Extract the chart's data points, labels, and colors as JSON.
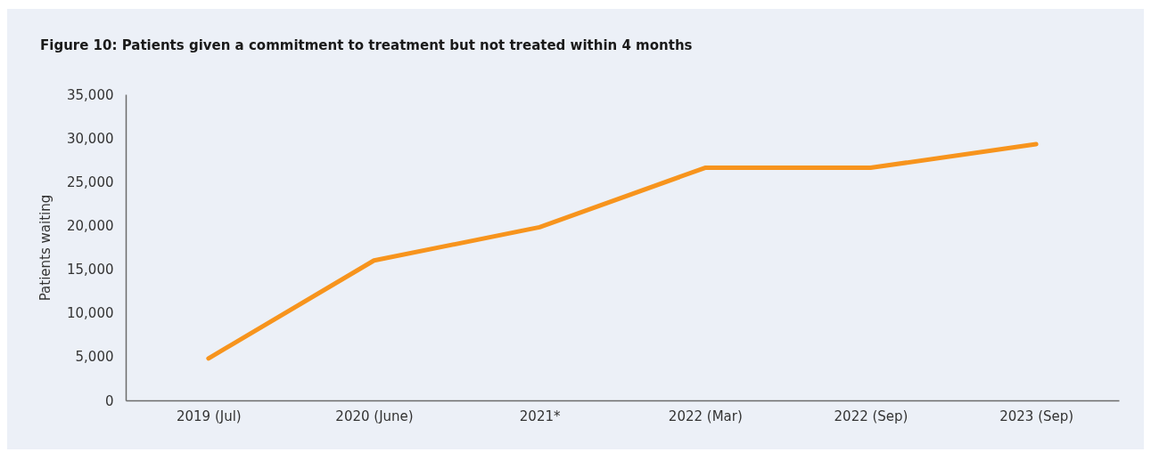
{
  "chart_data": {
    "type": "line",
    "title": "Figure 10: Patients given a commitment to treatment but not treated within 4 months",
    "ylabel": "Patients waiting",
    "categories": [
      "2019 (Jul)",
      "2020 (June)",
      "2021*",
      "2022 (Mar)",
      "2022 (Sep)",
      "2023 (Sep)"
    ],
    "series": [
      {
        "color": "#f7941d",
        "values": [
          4800,
          16000,
          19800,
          26600,
          26600,
          29300
        ]
      }
    ],
    "ylim": [
      0,
      35000
    ],
    "yticks": [
      0,
      {
        "value": 5000,
        "label": "5,000"
      },
      {
        "value": 10000,
        "label": "10,000"
      },
      {
        "value": 15000,
        "label": "15,000"
      },
      {
        "value": 20000,
        "label": "20,000"
      },
      {
        "value": 25000,
        "label": "25,000"
      },
      {
        "value": 30000,
        "label": "30,000"
      },
      {
        "value": 35000,
        "label": "35,000"
      }
    ]
  }
}
